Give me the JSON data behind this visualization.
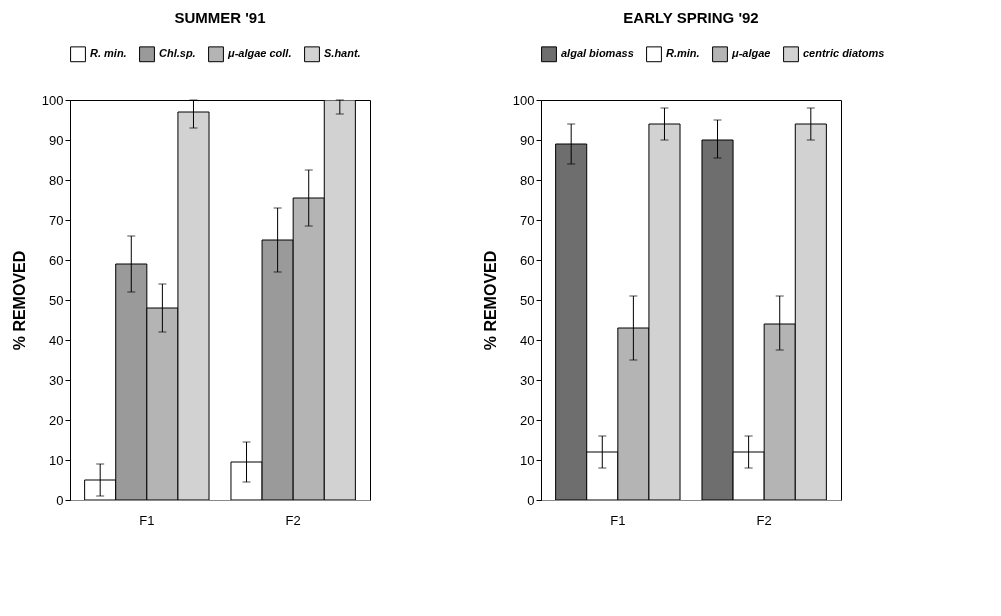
{
  "chart_data": [
    {
      "type": "bar",
      "title": "SUMMER '91",
      "ylabel": "% REMOVED",
      "categories": [
        "F1",
        "F2"
      ],
      "ylim": [
        0,
        100
      ],
      "yticks": [
        0,
        10,
        20,
        30,
        40,
        50,
        60,
        70,
        80,
        90,
        100
      ],
      "legend": "top",
      "grid": false,
      "series": [
        {
          "name": "R. min.",
          "color": "#ffffff",
          "values": [
            5,
            9.5
          ],
          "errors": [
            4,
            5
          ]
        },
        {
          "name": "Chl.sp.",
          "color": "#9a9a9a",
          "values": [
            59,
            65
          ],
          "errors": [
            7,
            8
          ]
        },
        {
          "name": "μ-algae coll.",
          "color": "#b4b4b4",
          "values": [
            48,
            75.5
          ],
          "errors": [
            6,
            7
          ]
        },
        {
          "name": "S.hant.",
          "color": "#d2d2d2",
          "values": [
            97,
            100
          ],
          "errors": [
            [
              93,
              100
            ],
            [
              96.5,
              100
            ]
          ]
        }
      ]
    },
    {
      "type": "bar",
      "title": "EARLY SPRING '92",
      "ylabel": "% REMOVED",
      "categories": [
        "F1",
        "F2"
      ],
      "ylim": [
        0,
        100
      ],
      "yticks": [
        0,
        10,
        20,
        30,
        40,
        50,
        60,
        70,
        80,
        90,
        100
      ],
      "legend": "top",
      "grid": false,
      "series": [
        {
          "name": "algal biomass",
          "color": "#6e6e6e",
          "values": [
            89,
            90
          ],
          "errors": [
            5,
            [
              85.5,
              95
            ]
          ]
        },
        {
          "name": "R.min.",
          "color": "#ffffff",
          "values": [
            12,
            12
          ],
          "errors": [
            4,
            4
          ]
        },
        {
          "name": "μ-algae",
          "color": "#b4b4b4",
          "values": [
            43,
            44
          ],
          "errors": [
            8,
            [
              37.5,
              51
            ]
          ]
        },
        {
          "name": "centric diatoms",
          "color": "#d2d2d2",
          "values": [
            94,
            94
          ],
          "errors": [
            4,
            4
          ]
        }
      ]
    }
  ]
}
